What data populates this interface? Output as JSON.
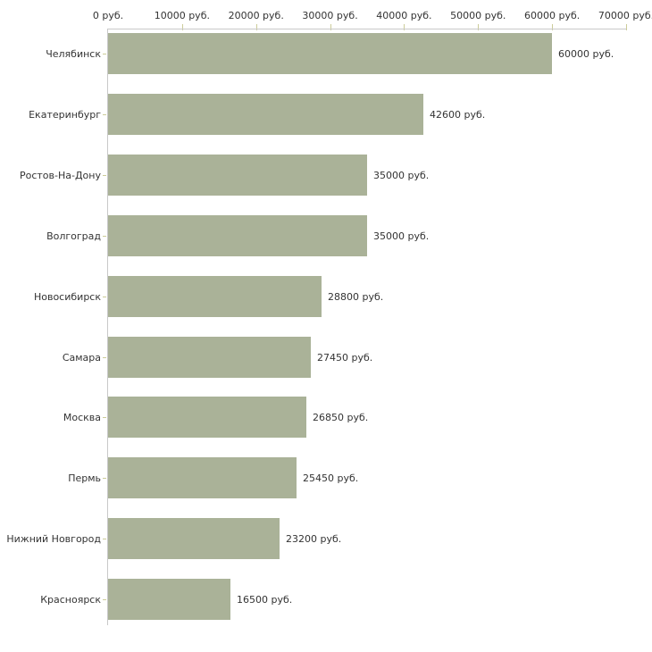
{
  "chart_data": {
    "type": "bar",
    "orientation": "horizontal",
    "title": "",
    "categories": [
      "Челябинск",
      "Екатеринбург",
      "Ростов-На-Дону",
      "Волгоград",
      "Новосибирск",
      "Самара",
      "Москва",
      "Пермь",
      "Нижний Новгород",
      "Красноярск"
    ],
    "values": [
      60000,
      42600,
      35000,
      35000,
      28800,
      27450,
      26850,
      25450,
      23200,
      16500
    ],
    "bar_labels": [
      "60000 руб.",
      "42600 руб.",
      "35000 руб.",
      "35000 руб.",
      "28800 руб.",
      "27450 руб.",
      "26850 руб.",
      "25450 руб.",
      "23200 руб.",
      "16500 руб."
    ],
    "x_axis": {
      "position": "top",
      "tick_labels": [
        "0 руб.",
        "10000 руб.",
        "20000 руб.",
        "30000 руб.",
        "40000 руб.",
        "50000 руб.",
        "60000 руб.",
        "70000 руб."
      ],
      "min": 0,
      "max": 70000,
      "step": 10000
    },
    "y_axis": {
      "position": "left"
    },
    "grid": false,
    "legend": false,
    "colors": {
      "bar": "#aab298",
      "axis_line": "#c9c9c9",
      "tick": "#cccc99",
      "text": "#333333",
      "background": "#ffffff"
    }
  }
}
